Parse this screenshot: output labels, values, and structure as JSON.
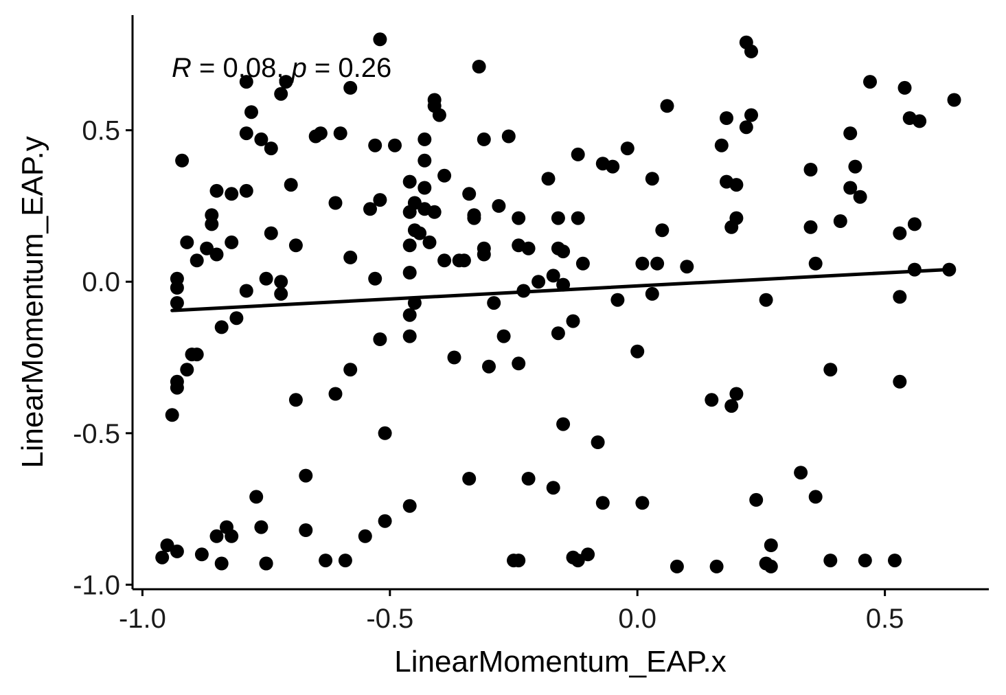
{
  "chart_data": {
    "type": "scatter",
    "xlabel": "LinearMomentum_EAP.x",
    "ylabel": "LinearMomentum_EAP.y",
    "xlim": [
      -1.02,
      0.71
    ],
    "ylim": [
      -1.015,
      0.88
    ],
    "xticks": [
      -1.0,
      -0.5,
      0.0,
      0.5
    ],
    "xtick_labels": [
      "-1.0",
      "-0.5",
      "0.0",
      "0.5"
    ],
    "yticks": [
      -1.0,
      -0.5,
      0.0,
      0.5
    ],
    "ytick_labels": [
      "-1.0",
      "-0.5",
      "0.0",
      "0.5"
    ],
    "grid": false,
    "annotation": {
      "r_symbol": "R",
      "r_value": " = 0.08, ",
      "p_symbol": "p",
      "p_value": " = 0.26"
    },
    "regression_line": {
      "x": [
        -0.94,
        0.625
      ],
      "y": [
        -0.095,
        0.04
      ]
    },
    "colors": {
      "points": "#000000",
      "line": "#000000",
      "axis": "#000000"
    },
    "points": [
      [
        -0.52,
        0.8
      ],
      [
        0.22,
        0.79
      ],
      [
        0.23,
        0.76
      ],
      [
        -0.32,
        0.71
      ],
      [
        -0.79,
        0.66
      ],
      [
        -0.71,
        0.66
      ],
      [
        0.47,
        0.66
      ],
      [
        -0.58,
        0.64
      ],
      [
        0.54,
        0.64
      ],
      [
        -0.72,
        0.62
      ],
      [
        -0.41,
        0.6
      ],
      [
        0.64,
        0.6
      ],
      [
        -0.41,
        0.58
      ],
      [
        0.06,
        0.58
      ],
      [
        -0.78,
        0.56
      ],
      [
        -0.4,
        0.55
      ],
      [
        0.23,
        0.55
      ],
      [
        0.18,
        0.54
      ],
      [
        0.55,
        0.54
      ],
      [
        0.57,
        0.53
      ],
      [
        0.22,
        0.51
      ],
      [
        -0.79,
        0.49
      ],
      [
        -0.64,
        0.49
      ],
      [
        -0.6,
        0.49
      ],
      [
        0.43,
        0.49
      ],
      [
        -0.26,
        0.48
      ],
      [
        -0.65,
        0.48
      ],
      [
        -0.31,
        0.47
      ],
      [
        -0.43,
        0.47
      ],
      [
        -0.76,
        0.47
      ],
      [
        -0.53,
        0.45
      ],
      [
        -0.49,
        0.45
      ],
      [
        0.17,
        0.45
      ],
      [
        -0.74,
        0.44
      ],
      [
        -0.02,
        0.44
      ],
      [
        -0.12,
        0.42
      ],
      [
        -0.92,
        0.4
      ],
      [
        -0.43,
        0.4
      ],
      [
        -0.07,
        0.39
      ],
      [
        -0.05,
        0.38
      ],
      [
        0.44,
        0.38
      ],
      [
        0.35,
        0.37
      ],
      [
        -0.39,
        0.35
      ],
      [
        -0.18,
        0.34
      ],
      [
        0.03,
        0.34
      ],
      [
        -0.46,
        0.33
      ],
      [
        0.18,
        0.33
      ],
      [
        0.2,
        0.32
      ],
      [
        -0.7,
        0.32
      ],
      [
        -0.43,
        0.31
      ],
      [
        0.43,
        0.31
      ],
      [
        -0.85,
        0.3
      ],
      [
        -0.79,
        0.3
      ],
      [
        -0.82,
        0.29
      ],
      [
        -0.34,
        0.29
      ],
      [
        0.45,
        0.28
      ],
      [
        -0.52,
        0.27
      ],
      [
        -0.45,
        0.26
      ],
      [
        -0.61,
        0.26
      ],
      [
        -0.28,
        0.25
      ],
      [
        -0.54,
        0.24
      ],
      [
        -0.43,
        0.24
      ],
      [
        -0.46,
        0.23
      ],
      [
        -0.41,
        0.23
      ],
      [
        -0.86,
        0.22
      ],
      [
        -0.33,
        0.22
      ],
      [
        -0.33,
        0.21
      ],
      [
        -0.24,
        0.21
      ],
      [
        -0.16,
        0.21
      ],
      [
        -0.12,
        0.21
      ],
      [
        0.2,
        0.21
      ],
      [
        0.41,
        0.2
      ],
      [
        -0.86,
        0.19
      ],
      [
        0.56,
        0.19
      ],
      [
        0.19,
        0.18
      ],
      [
        0.35,
        0.18
      ],
      [
        0.05,
        0.17
      ],
      [
        -0.45,
        0.17
      ],
      [
        -0.44,
        0.16
      ],
      [
        -0.74,
        0.16
      ],
      [
        0.53,
        0.16
      ],
      [
        -0.91,
        0.13
      ],
      [
        -0.82,
        0.13
      ],
      [
        -0.42,
        0.13
      ],
      [
        -0.69,
        0.12
      ],
      [
        -0.24,
        0.12
      ],
      [
        -0.46,
        0.12
      ],
      [
        -0.22,
        0.11
      ],
      [
        -0.87,
        0.11
      ],
      [
        -0.31,
        0.11
      ],
      [
        -0.16,
        0.11
      ],
      [
        -0.15,
        0.1
      ],
      [
        -0.31,
        0.09
      ],
      [
        -0.85,
        0.09
      ],
      [
        -0.58,
        0.08
      ],
      [
        -0.89,
        0.07
      ],
      [
        -0.39,
        0.07
      ],
      [
        -0.36,
        0.07
      ],
      [
        -0.35,
        0.07
      ],
      [
        0.36,
        0.06
      ],
      [
        -0.11,
        0.06
      ],
      [
        0.01,
        0.06
      ],
      [
        0.04,
        0.06
      ],
      [
        0.1,
        0.05
      ],
      [
        0.56,
        0.04
      ],
      [
        0.63,
        0.04
      ],
      [
        -0.46,
        0.03
      ],
      [
        -0.17,
        0.02
      ],
      [
        -0.93,
        0.01
      ],
      [
        -0.53,
        0.01
      ],
      [
        -0.75,
        0.01
      ],
      [
        -0.72,
        0.0
      ],
      [
        -0.2,
        0.0
      ],
      [
        -0.15,
        -0.01
      ],
      [
        -0.93,
        -0.02
      ],
      [
        -0.79,
        -0.03
      ],
      [
        -0.23,
        -0.03
      ],
      [
        0.03,
        -0.04
      ],
      [
        -0.72,
        -0.04
      ],
      [
        0.53,
        -0.05
      ],
      [
        -0.04,
        -0.06
      ],
      [
        0.26,
        -0.06
      ],
      [
        -0.29,
        -0.07
      ],
      [
        -0.45,
        -0.07
      ],
      [
        -0.93,
        -0.07
      ],
      [
        -0.46,
        -0.11
      ],
      [
        -0.81,
        -0.12
      ],
      [
        -0.13,
        -0.13
      ],
      [
        -0.84,
        -0.15
      ],
      [
        -0.16,
        -0.17
      ],
      [
        -0.27,
        -0.18
      ],
      [
        -0.46,
        -0.18
      ],
      [
        -0.52,
        -0.19
      ],
      [
        0.0,
        -0.23
      ],
      [
        -0.89,
        -0.24
      ],
      [
        -0.9,
        -0.24
      ],
      [
        -0.37,
        -0.25
      ],
      [
        -0.24,
        -0.27
      ],
      [
        -0.3,
        -0.28
      ],
      [
        -0.58,
        -0.29
      ],
      [
        0.39,
        -0.29
      ],
      [
        -0.91,
        -0.29
      ],
      [
        -0.93,
        -0.33
      ],
      [
        0.53,
        -0.33
      ],
      [
        -0.93,
        -0.35
      ],
      [
        0.2,
        -0.37
      ],
      [
        -0.61,
        -0.37
      ],
      [
        0.15,
        -0.39
      ],
      [
        -0.69,
        -0.39
      ],
      [
        0.19,
        -0.41
      ],
      [
        -0.94,
        -0.44
      ],
      [
        -0.15,
        -0.47
      ],
      [
        -0.51,
        -0.5
      ],
      [
        -0.08,
        -0.53
      ],
      [
        0.33,
        -0.63
      ],
      [
        -0.34,
        -0.65
      ],
      [
        -0.67,
        -0.64
      ],
      [
        -0.22,
        -0.65
      ],
      [
        -0.17,
        -0.68
      ],
      [
        0.24,
        -0.72
      ],
      [
        -0.77,
        -0.71
      ],
      [
        0.36,
        -0.71
      ],
      [
        -0.07,
        -0.73
      ],
      [
        0.01,
        -0.73
      ],
      [
        -0.46,
        -0.74
      ],
      [
        -0.51,
        -0.79
      ],
      [
        -0.76,
        -0.81
      ],
      [
        -0.83,
        -0.81
      ],
      [
        -0.67,
        -0.82
      ],
      [
        -0.85,
        -0.84
      ],
      [
        -0.82,
        -0.84
      ],
      [
        -0.55,
        -0.84
      ],
      [
        0.27,
        -0.87
      ],
      [
        -0.95,
        -0.87
      ],
      [
        -0.93,
        -0.89
      ],
      [
        -0.88,
        -0.9
      ],
      [
        -0.1,
        -0.9
      ],
      [
        -0.96,
        -0.91
      ],
      [
        -0.13,
        -0.91
      ],
      [
        -0.63,
        -0.92
      ],
      [
        -0.59,
        -0.92
      ],
      [
        -0.25,
        -0.92
      ],
      [
        -0.24,
        -0.92
      ],
      [
        0.39,
        -0.92
      ],
      [
        0.46,
        -0.92
      ],
      [
        0.52,
        -0.92
      ],
      [
        -0.12,
        -0.92
      ],
      [
        -0.75,
        -0.93
      ],
      [
        -0.84,
        -0.93
      ],
      [
        -0.75,
        -0.93
      ],
      [
        0.26,
        -0.93
      ],
      [
        0.27,
        -0.94
      ],
      [
        0.08,
        -0.94
      ],
      [
        0.16,
        -0.94
      ]
    ]
  }
}
